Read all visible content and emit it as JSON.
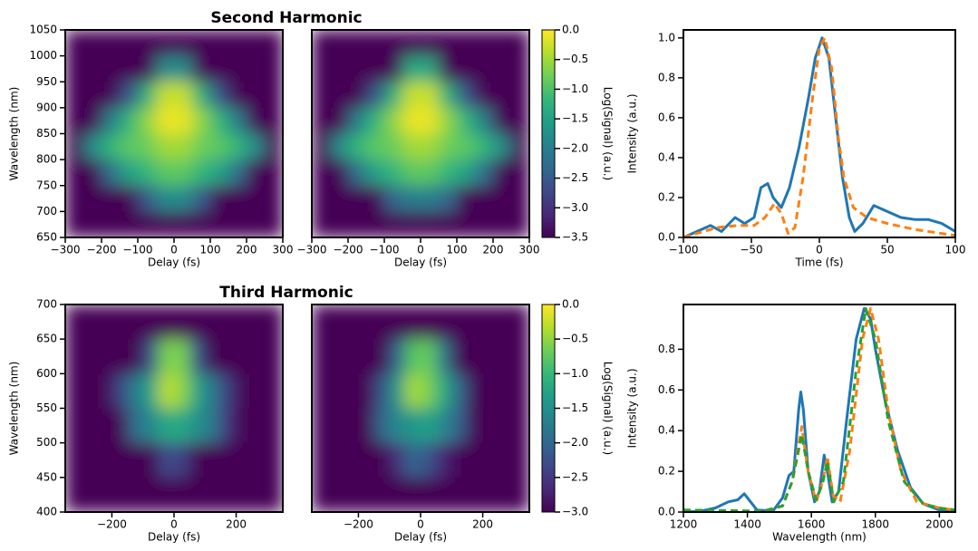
{
  "chart_data": [
    {
      "type": "heatmap",
      "title": "Second Harmonic",
      "xlabel": "Delay (fs)",
      "ylabel": "Wavelength (nm)",
      "xlim": [
        -300,
        300
      ],
      "ylim": [
        650,
        1050
      ],
      "zlim": [
        -3.5,
        0
      ],
      "xticks": [
        {
          "value": -300,
          "label": "−300"
        },
        {
          "value": -200,
          "label": "−200"
        },
        {
          "value": -100,
          "label": "−100"
        },
        0,
        100,
        200,
        300
      ],
      "yticks": [
        650,
        700,
        750,
        800,
        850,
        900,
        950,
        1000,
        1050
      ],
      "x": [
        -275,
        -225,
        -175,
        -125,
        -75,
        -25,
        25,
        75,
        125,
        175,
        225,
        275
      ],
      "y": [
        1025,
        975,
        925,
        875,
        825,
        775,
        725,
        675
      ],
      "z": [
        [
          -3.5,
          -3.5,
          -3.5,
          -3.5,
          -3.5,
          -3.5,
          -3.5,
          -3.5,
          -3.5,
          -3.5,
          -3.5,
          -3.5
        ],
        [
          -3.5,
          -3.5,
          -3.5,
          -3.5,
          -3.5,
          -1.8,
          -1.8,
          -3.5,
          -3.5,
          -3.5,
          -3.5,
          -3.5
        ],
        [
          -3.5,
          -3.5,
          -3.5,
          -2.6,
          -1.3,
          -0.3,
          -0.3,
          -1.3,
          -2.6,
          -3.5,
          -3.5,
          -3.5
        ],
        [
          -3.5,
          -3.5,
          -2.0,
          -1.2,
          -0.6,
          -0.1,
          -0.1,
          -0.6,
          -1.2,
          -2.0,
          -3.5,
          -3.5
        ],
        [
          -3.5,
          -1.8,
          -1.2,
          -0.9,
          -0.8,
          -0.5,
          -0.5,
          -0.8,
          -0.9,
          -1.2,
          -1.8,
          -3.5
        ],
        [
          -3.5,
          -3.5,
          -2.2,
          -1.5,
          -1.2,
          -0.9,
          -0.9,
          -1.2,
          -1.5,
          -2.2,
          -3.5,
          -3.5
        ],
        [
          -3.5,
          -3.5,
          -3.5,
          -3.5,
          -2.5,
          -1.8,
          -1.8,
          -2.5,
          -3.5,
          -3.5,
          -3.5,
          -3.5
        ],
        [
          -3.5,
          -3.5,
          -3.5,
          -3.5,
          -3.5,
          -3.5,
          -3.5,
          -3.5,
          -3.5,
          -3.5,
          -3.5,
          -3.5
        ]
      ]
    },
    {
      "type": "heatmap",
      "xlabel": "Delay (fs)",
      "xlim": [
        -300,
        300
      ],
      "ylim": [
        650,
        1050
      ],
      "zlim": [
        -3.5,
        0
      ],
      "xticks": [
        {
          "value": -300,
          "label": "−300"
        },
        {
          "value": -200,
          "label": "−200"
        },
        {
          "value": -100,
          "label": "−100"
        },
        0,
        100,
        200,
        300
      ],
      "x": [
        -275,
        -225,
        -175,
        -125,
        -75,
        -25,
        25,
        75,
        125,
        175,
        225,
        275
      ],
      "y": [
        1025,
        975,
        925,
        875,
        825,
        775,
        725,
        675
      ],
      "z": [
        [
          -3.5,
          -3.5,
          -3.5,
          -3.5,
          -3.5,
          -3.5,
          -3.5,
          -3.5,
          -3.5,
          -3.5,
          -3.5,
          -3.5
        ],
        [
          -3.5,
          -3.5,
          -3.5,
          -3.5,
          -3.5,
          -1.4,
          -1.4,
          -3.5,
          -3.5,
          -3.5,
          -3.5,
          -3.5
        ],
        [
          -3.5,
          -3.5,
          -3.5,
          -2.6,
          -1.3,
          -0.3,
          -0.3,
          -1.3,
          -2.6,
          -3.5,
          -3.5,
          -3.5
        ],
        [
          -3.5,
          -3.5,
          -2.0,
          -1.2,
          -0.6,
          -0.1,
          -0.1,
          -0.6,
          -1.2,
          -2.0,
          -3.5,
          -3.5
        ],
        [
          -3.5,
          -1.8,
          -1.2,
          -0.9,
          -0.8,
          -0.5,
          -0.5,
          -0.8,
          -0.9,
          -1.2,
          -1.8,
          -3.5
        ],
        [
          -3.5,
          -3.5,
          -2.2,
          -1.5,
          -1.2,
          -0.9,
          -0.9,
          -1.2,
          -1.5,
          -2.2,
          -3.5,
          -3.5
        ],
        [
          -3.5,
          -3.5,
          -3.5,
          -3.5,
          -2.3,
          -2.0,
          -2.0,
          -2.3,
          -3.5,
          -3.5,
          -3.5,
          -3.5
        ],
        [
          -3.5,
          -3.5,
          -3.5,
          -3.5,
          -3.5,
          -3.5,
          -3.5,
          -3.5,
          -3.5,
          -3.5,
          -3.5,
          -3.5
        ]
      ]
    },
    {
      "type": "colorbar",
      "label": "Log(Signal) (a.u.)",
      "zlim": [
        -3.5,
        0
      ],
      "zticks": [
        {
          "value": 0,
          "label": "0.0"
        },
        {
          "value": -0.5,
          "label": "−0.5"
        },
        {
          "value": -1,
          "label": "−1.0"
        },
        {
          "value": -1.5,
          "label": "−1.5"
        },
        {
          "value": -2,
          "label": "−2.0"
        },
        {
          "value": -2.5,
          "label": "−2.5"
        },
        {
          "value": -3,
          "label": "−3.0"
        },
        {
          "value": -3.5,
          "label": "−3.5"
        }
      ]
    },
    {
      "type": "line",
      "xlabel": "Time (fs)",
      "ylabel": "Intensity (a.u.)",
      "xlim": [
        -100,
        100
      ],
      "ylim": [
        0,
        1.04
      ],
      "xticks": [
        {
          "value": -100,
          "label": "−100"
        },
        {
          "value": -50,
          "label": "−50"
        },
        0,
        50,
        100
      ],
      "yticks": [
        {
          "value": 0,
          "label": "0.0"
        },
        {
          "value": 0.2,
          "label": "0.2"
        },
        {
          "value": 0.4,
          "label": "0.4"
        },
        {
          "value": 0.6,
          "label": "0.6"
        },
        {
          "value": 0.8,
          "label": "0.8"
        },
        {
          "value": 1,
          "label": "1.0"
        }
      ],
      "series": [
        {
          "color": "#1f77b4",
          "dashed": false,
          "x": [
            -100,
            -90,
            -80,
            -72,
            -62,
            -55,
            -48,
            -43,
            -38,
            -34,
            -28,
            -22,
            -15,
            -8,
            -3,
            2,
            7,
            12,
            17,
            22,
            26,
            32,
            40,
            50,
            60,
            70,
            80,
            90,
            100
          ],
          "values": [
            0,
            0.03,
            0.06,
            0.03,
            0.1,
            0.07,
            0.1,
            0.25,
            0.27,
            0.2,
            0.15,
            0.25,
            0.45,
            0.7,
            0.9,
            1.0,
            0.9,
            0.6,
            0.3,
            0.1,
            0.03,
            0.07,
            0.16,
            0.13,
            0.1,
            0.09,
            0.09,
            0.07,
            0.03
          ]
        },
        {
          "color": "#ff7f0e",
          "dashed": true,
          "x": [
            -100,
            -85,
            -75,
            -60,
            -48,
            -40,
            -33,
            -28,
            -23,
            -18,
            -12,
            -5,
            0,
            4,
            9,
            14,
            18,
            25,
            35,
            50,
            70,
            90,
            100
          ],
          "values": [
            0,
            0.03,
            0.05,
            0.06,
            0.06,
            0.1,
            0.17,
            0.12,
            0.02,
            0.05,
            0.3,
            0.7,
            0.95,
            1.0,
            0.85,
            0.5,
            0.3,
            0.15,
            0.1,
            0.07,
            0.04,
            0.02,
            0.01
          ]
        }
      ]
    },
    {
      "type": "heatmap",
      "title": "Third Harmonic",
      "xlabel": "Delay (fs)",
      "ylabel": "Wavelength (nm)",
      "xlim": [
        -350,
        350
      ],
      "ylim": [
        400,
        700
      ],
      "zlim": [
        -3,
        0
      ],
      "xticks": [
        {
          "value": -200,
          "label": "−200"
        },
        0,
        200
      ],
      "yticks": [
        400,
        450,
        500,
        550,
        600,
        650,
        700
      ],
      "x": [
        -325,
        -275,
        -225,
        -175,
        -125,
        -75,
        -25,
        25,
        75,
        125,
        175,
        225,
        275,
        325
      ],
      "y": [
        675,
        625,
        575,
        525,
        475,
        425
      ],
      "z": [
        [
          -3,
          -3,
          -3,
          -3,
          -3,
          -3,
          -3,
          -3,
          -3,
          -3,
          -3,
          -3,
          -3,
          -3
        ],
        [
          -3,
          -3,
          -3,
          -3,
          -3,
          -2.2,
          -0.6,
          -0.6,
          -2.2,
          -3,
          -3,
          -3,
          -3,
          -3
        ],
        [
          -3,
          -3,
          -3,
          -2.4,
          -1.7,
          -1.3,
          -0.3,
          -0.5,
          -1.3,
          -1.8,
          -2.5,
          -3,
          -3,
          -3
        ],
        [
          -3,
          -3,
          -3,
          -3,
          -1.9,
          -1.6,
          -1.2,
          -1.2,
          -1.5,
          -1.8,
          -2.6,
          -3,
          -3,
          -3
        ],
        [
          -3,
          -3,
          -3,
          -3,
          -3,
          -3,
          -2.3,
          -2.4,
          -3,
          -3,
          -3,
          -3,
          -3,
          -3
        ],
        [
          -3,
          -3,
          -3,
          -3,
          -3,
          -3,
          -3,
          -3,
          -3,
          -3,
          -3,
          -3,
          -3,
          -3
        ]
      ]
    },
    {
      "type": "heatmap",
      "xlabel": "Delay (fs)",
      "xlim": [
        -350,
        350
      ],
      "ylim": [
        400,
        700
      ],
      "zlim": [
        -3,
        0
      ],
      "xticks": [
        {
          "value": -200,
          "label": "−200"
        },
        0,
        200
      ],
      "x": [
        -325,
        -275,
        -225,
        -175,
        -125,
        -75,
        -25,
        25,
        75,
        125,
        175,
        225,
        275,
        325
      ],
      "y": [
        675,
        625,
        575,
        525,
        475,
        425
      ],
      "z": [
        [
          -3,
          -3,
          -3,
          -3,
          -3,
          -3,
          -3,
          -3,
          -3,
          -3,
          -3,
          -3,
          -3,
          -3
        ],
        [
          -3,
          -3,
          -3,
          -3,
          -3,
          -2.0,
          -0.8,
          -0.7,
          -1.8,
          -3,
          -3,
          -3,
          -3,
          -3
        ],
        [
          -3,
          -3,
          -3,
          -3,
          -2.2,
          -1.4,
          -0.4,
          -0.6,
          -1.2,
          -2.0,
          -3,
          -3,
          -3,
          -3
        ],
        [
          -3,
          -3,
          -3,
          -3,
          -2.0,
          -1.6,
          -1.4,
          -1.3,
          -1.6,
          -2.1,
          -3,
          -3,
          -3,
          -3
        ],
        [
          -3,
          -3,
          -3,
          -3,
          -3,
          -2.6,
          -2.0,
          -2.2,
          -2.7,
          -3,
          -3,
          -3,
          -3,
          -3
        ],
        [
          -3,
          -3,
          -3,
          -3,
          -3,
          -3,
          -3,
          -3,
          -3,
          -3,
          -3,
          -3,
          -3,
          -3
        ]
      ]
    },
    {
      "type": "colorbar",
      "label": "Log(Signal) (a.u.)",
      "zlim": [
        -3,
        0
      ],
      "zticks": [
        {
          "value": 0,
          "label": "0.0"
        },
        {
          "value": -0.5,
          "label": "−0.5"
        },
        {
          "value": -1,
          "label": "−1.0"
        },
        {
          "value": -1.5,
          "label": "−1.5"
        },
        {
          "value": -2,
          "label": "−2.0"
        },
        {
          "value": -2.5,
          "label": "−2.5"
        },
        {
          "value": -3,
          "label": "−3.0"
        }
      ]
    },
    {
      "type": "line",
      "xlabel": "Wavelength (nm)",
      "ylabel": "Intensity (a.u.)",
      "xlim": [
        1200,
        2050
      ],
      "ylim": [
        0,
        1.02
      ],
      "xticks": [
        1200,
        1400,
        1600,
        1800,
        2000
      ],
      "yticks": [
        {
          "value": 0,
          "label": "0.0"
        },
        {
          "value": 0.2,
          "label": "0.2"
        },
        {
          "value": 0.4,
          "label": "0.4"
        },
        {
          "value": 0.6,
          "label": "0.6"
        },
        {
          "value": 0.8,
          "label": "0.8"
        }
      ],
      "series": [
        {
          "color": "#1f77b4",
          "dashed": false,
          "x": [
            1200,
            1250,
            1300,
            1340,
            1370,
            1390,
            1410,
            1430,
            1480,
            1510,
            1530,
            1545,
            1560,
            1567,
            1575,
            1590,
            1610,
            1625,
            1640,
            1650,
            1665,
            1685,
            1710,
            1740,
            1765,
            1785,
            1800,
            1830,
            1870,
            1910,
            1950,
            2000,
            2050
          ],
          "values": [
            0,
            0.003,
            0.02,
            0.05,
            0.06,
            0.09,
            0.05,
            0.01,
            0.005,
            0.07,
            0.18,
            0.2,
            0.5,
            0.59,
            0.5,
            0.2,
            0.05,
            0.1,
            0.28,
            0.2,
            0.05,
            0.1,
            0.45,
            0.85,
            1.0,
            0.95,
            0.8,
            0.55,
            0.3,
            0.12,
            0.04,
            0.01,
            0.005
          ]
        },
        {
          "color": "#ff7f0e",
          "dashed": true,
          "x": [
            1200,
            1450,
            1510,
            1540,
            1570,
            1590,
            1615,
            1635,
            1650,
            1668,
            1690,
            1720,
            1760,
            1785,
            1810,
            1840,
            1880,
            1930,
            2000,
            2050
          ],
          "values": [
            0,
            0.005,
            0.03,
            0.15,
            0.42,
            0.2,
            0.05,
            0.15,
            0.27,
            0.08,
            0.05,
            0.3,
            0.85,
            1.0,
            0.85,
            0.5,
            0.2,
            0.05,
            0.02,
            0.01
          ]
        },
        {
          "color": "#2ca02c",
          "dashed": true,
          "x": [
            1200,
            1450,
            1510,
            1540,
            1570,
            1590,
            1615,
            1635,
            1650,
            1670,
            1700,
            1740,
            1770,
            1800,
            1840,
            1890,
            1950,
            2000,
            2050
          ],
          "values": [
            0.01,
            0.005,
            0.03,
            0.15,
            0.38,
            0.2,
            0.06,
            0.14,
            0.25,
            0.05,
            0.15,
            0.7,
            1.0,
            0.85,
            0.45,
            0.15,
            0.04,
            0.02,
            0.01
          ]
        }
      ]
    }
  ]
}
